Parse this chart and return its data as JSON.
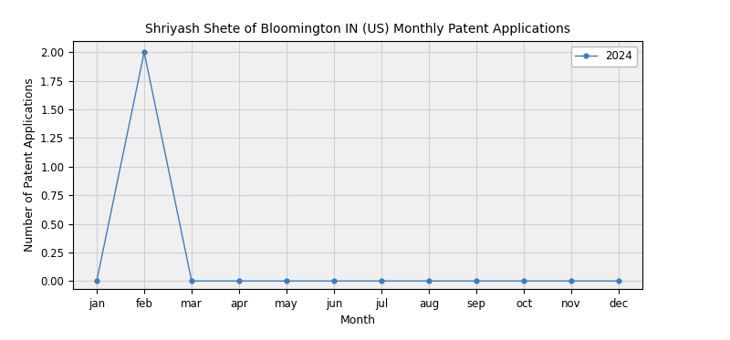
{
  "title": "Shriyash Shete of Bloomington IN (US) Monthly Patent Applications",
  "xlabel": "Month",
  "ylabel": "Number of Patent Applications",
  "months": [
    "jan",
    "feb",
    "mar",
    "apr",
    "may",
    "jun",
    "jul",
    "aug",
    "sep",
    "oct",
    "nov",
    "dec"
  ],
  "values_2024": [
    0,
    2,
    0,
    0,
    0,
    0,
    0,
    0,
    0,
    0,
    0,
    0
  ],
  "line_color": "#3a7ebf",
  "marker": "o",
  "marker_size": 3.5,
  "legend_label": "2024",
  "ylim": [
    -0.07,
    2.1
  ],
  "yticks": [
    0.0,
    0.25,
    0.5,
    0.75,
    1.0,
    1.25,
    1.5,
    1.75,
    2.0
  ],
  "grid_color": "#d0d0d0",
  "facecolor": "#f0f0f0",
  "figsize": [
    8.0,
    3.73
  ],
  "dpi": 100,
  "title_fontsize": 10,
  "axis_label_fontsize": 9,
  "tick_fontsize": 8.5
}
